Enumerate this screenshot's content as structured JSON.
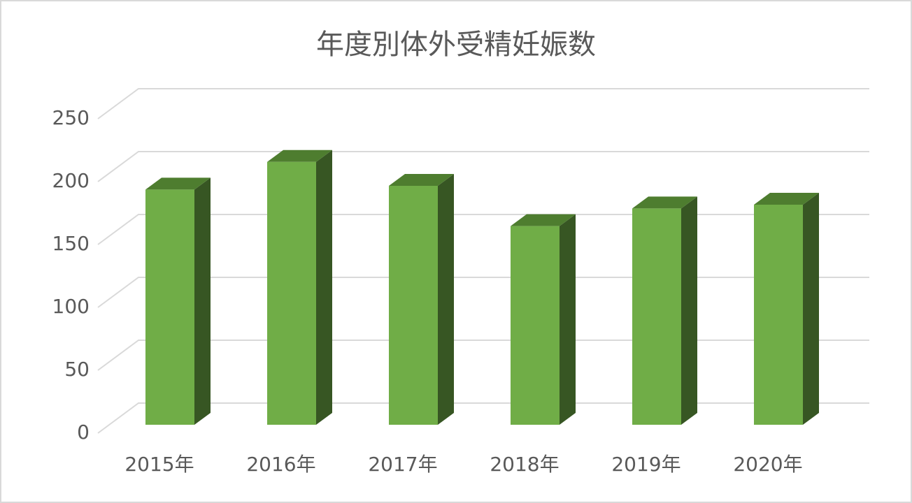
{
  "chart_data": {
    "type": "bar3d",
    "title": "年度別体外受精妊娠数",
    "categories": [
      "2015年",
      "2016年",
      "2017年",
      "2018年",
      "2019年",
      "2020年"
    ],
    "values": [
      187,
      209,
      190,
      158,
      172,
      175
    ],
    "color": "#70ad47",
    "ylim": [
      0,
      250
    ],
    "yticks": [
      0,
      50,
      100,
      150,
      200,
      250
    ],
    "grid": true
  }
}
